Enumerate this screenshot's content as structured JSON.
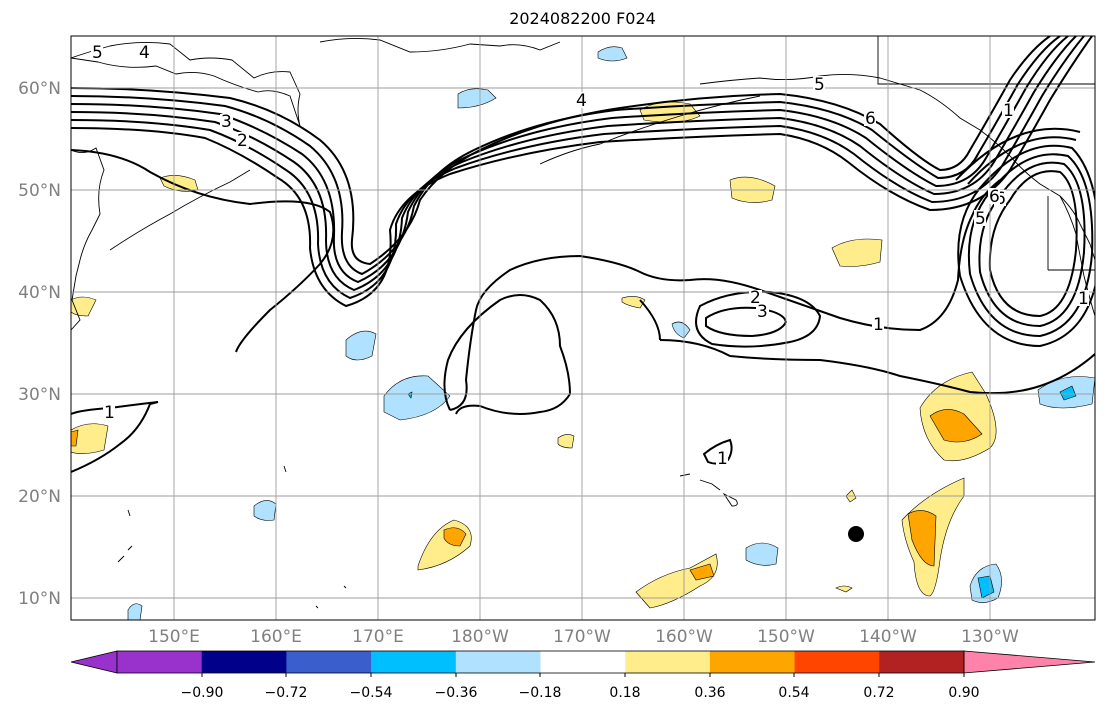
{
  "title": "2024082200 F024",
  "lat_labels": [
    "60°N",
    "50°N",
    "40°N",
    "30°N",
    "20°N",
    "10°N"
  ],
  "lon_labels": [
    "150°E",
    "160°E",
    "170°E",
    "180°W",
    "170°W",
    "160°W",
    "150°W",
    "140°W",
    "130°W"
  ],
  "colorbar": {
    "colors": [
      "#9932cc",
      "#00008b",
      "#3a5fcd",
      "#00bfff",
      "#b0e2ff",
      "#ffffff",
      "#ffec8b",
      "#ffa500",
      "#ff4500",
      "#b22222",
      "#ff82ab"
    ],
    "tick_labels": [
      "−0.90",
      "−0.72",
      "−0.54",
      "−0.36",
      "−0.18",
      "0.18",
      "0.36",
      "0.54",
      "0.72",
      "0.90"
    ]
  },
  "contour_labels": [
    "5",
    "4",
    "3",
    "2",
    "4",
    "6",
    "5",
    "6",
    "1",
    "6",
    "5",
    "2",
    "3",
    "1",
    "1",
    "1",
    "1"
  ]
}
